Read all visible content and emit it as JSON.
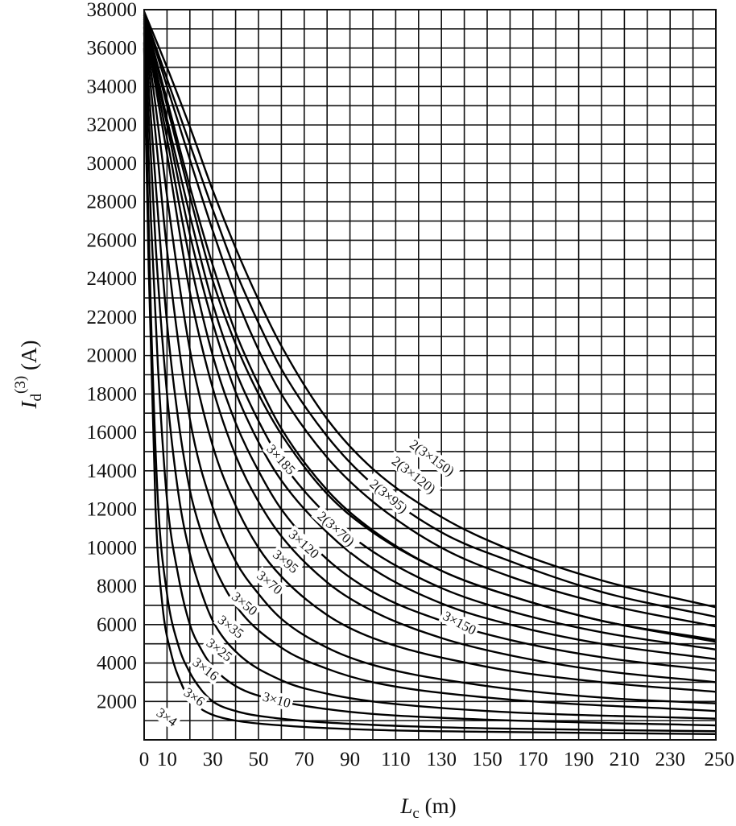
{
  "chart_data": {
    "type": "line",
    "title": "",
    "xlabel": {
      "symbol": "L",
      "subscript": "c",
      "unit": " (m)"
    },
    "ylabel": {
      "symbol": "I",
      "subscript": "d",
      "superscript": "(3)",
      "unit": " (A)"
    },
    "xlim": [
      0,
      250
    ],
    "ylim": [
      0,
      38000
    ],
    "x_grid_step": 10,
    "y_grid_step": 1000,
    "grid": true,
    "legend": "none (labels placed along curves)",
    "x_ticks": [
      0,
      10,
      30,
      50,
      70,
      90,
      110,
      130,
      150,
      170,
      190,
      210,
      230,
      250
    ],
    "x_tick_labels": [
      "0",
      "10",
      "30",
      "50",
      "70",
      "90",
      "110",
      "130",
      "150",
      "170",
      "190",
      "210",
      "230",
      "250"
    ],
    "y_ticks": [
      2000,
      4000,
      6000,
      8000,
      10000,
      12000,
      14000,
      16000,
      18000,
      20000,
      22000,
      24000,
      26000,
      28000,
      30000,
      32000,
      34000,
      36000,
      38000
    ],
    "y_tick_labels": [
      "2000",
      "4000",
      "6000",
      "8000",
      "10000",
      "12000",
      "14000",
      "16000",
      "18000",
      "20000",
      "22000",
      "24000",
      "26000",
      "28000",
      "30000",
      "32000",
      "34000",
      "36000",
      "38000"
    ],
    "series": [
      {
        "name": "3×4",
        "x": [
          0,
          2,
          5,
          8,
          12,
          16,
          20,
          25,
          30,
          40,
          60,
          100,
          150,
          250
        ],
        "y": [
          36000,
          24500,
          12000,
          7000,
          4400,
          3000,
          2100,
          1600,
          1300,
          1000,
          750,
          520,
          420,
          300
        ]
      },
      {
        "name": "3×6",
        "x": [
          0,
          3,
          6,
          10,
          15,
          20,
          25,
          30,
          40,
          60,
          100,
          150,
          250
        ],
        "y": [
          36300,
          22000,
          12500,
          7600,
          4900,
          3500,
          2600,
          2000,
          1500,
          1100,
          780,
          600,
          450
        ]
      },
      {
        "name": "3×10",
        "x": [
          0,
          3,
          6,
          10,
          15,
          20,
          25,
          30,
          40,
          60,
          80,
          100,
          150,
          250
        ],
        "y": [
          36800,
          27000,
          19500,
          12500,
          8500,
          6000,
          4700,
          3800,
          2800,
          2000,
          1600,
          1350,
          1050,
          750
        ]
      },
      {
        "name": "3×16",
        "x": [
          0,
          5,
          10,
          15,
          20,
          25,
          30,
          40,
          60,
          80,
          100,
          150,
          250
        ],
        "y": [
          37100,
          25800,
          18000,
          12800,
          9700,
          7700,
          6200,
          4600,
          3100,
          2400,
          2000,
          1500,
          1100
        ]
      },
      {
        "name": "3×25",
        "x": [
          0,
          5,
          10,
          15,
          20,
          25,
          30,
          40,
          60,
          80,
          100,
          150,
          250
        ],
        "y": [
          37300,
          29000,
          21700,
          16600,
          13000,
          10800,
          9200,
          7000,
          4800,
          3700,
          3000,
          2200,
          1500
        ]
      },
      {
        "name": "3×35",
        "x": [
          0,
          5,
          10,
          20,
          30,
          40,
          50,
          60,
          80,
          100,
          150,
          200,
          250
        ],
        "y": [
          37400,
          31500,
          25500,
          16700,
          12100,
          9300,
          7600,
          6300,
          4800,
          3900,
          2800,
          2200,
          1900
        ]
      },
      {
        "name": "3×50",
        "x": [
          0,
          5,
          10,
          20,
          30,
          40,
          50,
          60,
          80,
          100,
          150,
          200,
          250
        ],
        "y": [
          37500,
          33000,
          28300,
          20300,
          15300,
          12200,
          10000,
          8500,
          6500,
          5300,
          3800,
          3000,
          2500
        ]
      },
      {
        "name": "3×70",
        "x": [
          0,
          10,
          20,
          30,
          40,
          50,
          60,
          80,
          100,
          130,
          160,
          200,
          250
        ],
        "y": [
          37500,
          30500,
          23300,
          18300,
          14800,
          12400,
          10600,
          8200,
          6700,
          5300,
          4400,
          3600,
          3000
        ]
      },
      {
        "name": "3×95",
        "x": [
          0,
          10,
          20,
          30,
          40,
          50,
          60,
          80,
          100,
          130,
          160,
          200,
          250
        ],
        "y": [
          37600,
          31300,
          25000,
          20000,
          16500,
          14000,
          12000,
          9400,
          7700,
          6200,
          5200,
          4300,
          3600
        ]
      },
      {
        "name": "3×120",
        "x": [
          0,
          10,
          20,
          30,
          40,
          50,
          60,
          80,
          100,
          130,
          160,
          200,
          250
        ],
        "y": [
          37600,
          32000,
          26300,
          21700,
          18100,
          15500,
          13500,
          10800,
          8900,
          7100,
          6000,
          5000,
          4200
        ]
      },
      {
        "name": "3×150",
        "x": [
          0,
          10,
          20,
          30,
          40,
          50,
          60,
          80,
          100,
          130,
          160,
          200,
          250
        ],
        "y": [
          37700,
          32300,
          27300,
          22700,
          19200,
          16600,
          14500,
          11700,
          9800,
          7900,
          6700,
          5600,
          4700
        ]
      },
      {
        "name": "3×185",
        "x": [
          0,
          10,
          20,
          30,
          40,
          50,
          60,
          80,
          100,
          130,
          160,
          200,
          250
        ],
        "y": [
          37700,
          33000,
          28300,
          23900,
          20600,
          18000,
          15900,
          12800,
          10800,
          8800,
          7500,
          6200,
          5200
        ]
      },
      {
        "name": "2(3×70)",
        "x": [
          0,
          10,
          20,
          30,
          40,
          50,
          60,
          80,
          100,
          130,
          160,
          200,
          250
        ],
        "y": [
          37700,
          33300,
          28800,
          24700,
          21200,
          18500,
          16200,
          13000,
          10900,
          8800,
          7500,
          6200,
          5100
        ]
      },
      {
        "name": "2(3×95)",
        "x": [
          0,
          10,
          20,
          30,
          40,
          50,
          60,
          80,
          100,
          130,
          160,
          200,
          250
        ],
        "y": [
          37800,
          34000,
          30200,
          26500,
          23100,
          20300,
          18000,
          14700,
          12400,
          10000,
          8500,
          7100,
          5900
        ]
      },
      {
        "name": "2(3×120)",
        "x": [
          0,
          10,
          20,
          30,
          40,
          50,
          60,
          80,
          100,
          130,
          160,
          200,
          250
        ],
        "y": [
          37800,
          34400,
          31000,
          27600,
          24400,
          21700,
          19300,
          15800,
          13300,
          10800,
          9300,
          7700,
          6400
        ]
      },
      {
        "name": "2(3×150)",
        "x": [
          0,
          10,
          20,
          30,
          40,
          50,
          60,
          80,
          100,
          130,
          160,
          200,
          250
        ],
        "y": [
          37900,
          35000,
          31900,
          28600,
          25600,
          22900,
          20500,
          16700,
          14100,
          11600,
          9900,
          8300,
          6900
        ]
      }
    ],
    "annotations": [
      {
        "text": "3×4",
        "x": 10,
        "y": 1200,
        "angle": 35
      },
      {
        "text": "3×6",
        "x": 22,
        "y": 2250,
        "angle": 35
      },
      {
        "text": "3×10",
        "x": 58,
        "y": 2100,
        "angle": 15
      },
      {
        "text": "3×16",
        "x": 27,
        "y": 3700,
        "angle": 38
      },
      {
        "text": "3×25",
        "x": 33,
        "y": 4700,
        "angle": 38
      },
      {
        "text": "3×35",
        "x": 38,
        "y": 5900,
        "angle": 38
      },
      {
        "text": "3×50",
        "x": 44,
        "y": 7100,
        "angle": 40
      },
      {
        "text": "3×70",
        "x": 55,
        "y": 8200,
        "angle": 40
      },
      {
        "text": "3×95",
        "x": 62,
        "y": 9300,
        "angle": 40
      },
      {
        "text": "3×120",
        "x": 70,
        "y": 10200,
        "angle": 42
      },
      {
        "text": "3×185",
        "x": 60,
        "y": 14600,
        "angle": 48
      },
      {
        "text": "2(3×70)",
        "x": 84,
        "y": 11000,
        "angle": 42
      },
      {
        "text": "2(3×95)",
        "x": 107,
        "y": 12700,
        "angle": 40
      },
      {
        "text": "2(3×120)",
        "x": 118,
        "y": 13800,
        "angle": 38
      },
      {
        "text": "2(3×150)",
        "x": 126,
        "y": 14700,
        "angle": 36
      },
      {
        "text": "3×150",
        "x": 138,
        "y": 6100,
        "angle": 28
      }
    ]
  }
}
